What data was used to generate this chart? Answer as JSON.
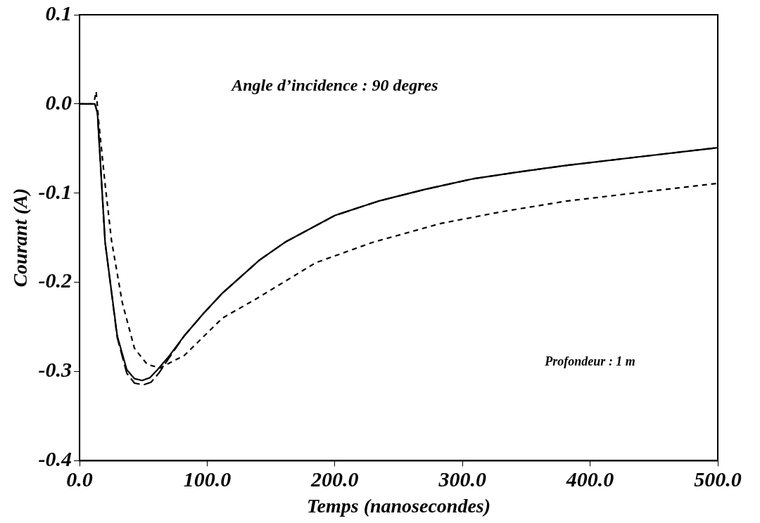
{
  "chart_data": {
    "type": "line",
    "xlabel": "Temps (nanosecondes)",
    "ylabel": "Courant (A)",
    "annotations": [
      "Angle d’incidence : 90 degres",
      "Profondeur : 1 m"
    ],
    "xlim": [
      0,
      500
    ],
    "xticks": [
      {
        "value": 0,
        "label": "0.0"
      },
      {
        "value": 100,
        "label": "100.0"
      },
      {
        "value": 200,
        "label": "200.0"
      },
      {
        "value": 300,
        "label": "300.0"
      },
      {
        "value": 400,
        "label": "400.0"
      },
      {
        "value": 500,
        "label": "500.0"
      }
    ],
    "ylim": [
      -0.4,
      0.1
    ],
    "yticks": [
      {
        "value": -0.4,
        "label": "-0.4"
      },
      {
        "value": -0.3,
        "label": "-0.3"
      },
      {
        "value": -0.2,
        "label": "-0.2"
      },
      {
        "value": -0.1,
        "label": "-0.1"
      },
      {
        "value": 0,
        "label": "0.0"
      },
      {
        "value": 0.1,
        "label": "0.1"
      }
    ],
    "grid": false,
    "legend": false,
    "marker": "none",
    "series": [
      {
        "color": "#000000",
        "line_style": "solid",
        "x": [
          0,
          12,
          14,
          20,
          29.5,
          37,
          43,
          49,
          55,
          61,
          70,
          82,
          97,
          112,
          141,
          161,
          200,
          234,
          270,
          308,
          345,
          381,
          440,
          494,
          500
        ],
        "values": [
          0,
          0,
          -0.01,
          -0.155,
          -0.26,
          -0.298,
          -0.308,
          -0.31,
          -0.307,
          -0.298,
          -0.283,
          -0.26,
          -0.235,
          -0.212,
          -0.175,
          -0.155,
          -0.125,
          -0.109,
          -0.096,
          -0.084,
          -0.076,
          -0.069,
          -0.059,
          -0.05,
          -0.049
        ]
      },
      {
        "color": "#000000",
        "line_style": "dashed",
        "x": [
          0,
          12,
          14,
          20,
          29.5,
          37,
          43,
          50,
          56,
          62,
          70,
          82,
          97,
          112,
          141,
          161,
          200,
          234,
          270,
          308,
          345,
          381,
          440,
          494,
          500
        ],
        "values": [
          0,
          0,
          -0.01,
          -0.155,
          -0.262,
          -0.302,
          -0.313,
          -0.315,
          -0.312,
          -0.302,
          -0.285,
          -0.26,
          -0.235,
          -0.212,
          -0.175,
          -0.155,
          -0.125,
          -0.109,
          -0.096,
          -0.084,
          -0.076,
          -0.069,
          -0.059,
          -0.05,
          -0.049
        ]
      },
      {
        "color": "#000000",
        "line_style": "dotted",
        "x": [
          0,
          11,
          13,
          15,
          20,
          25,
          33.5,
          43,
          53,
          63,
          82,
          112,
          139,
          185,
          230,
          283,
          330,
          381,
          440,
          494,
          500
        ],
        "values": [
          0,
          0,
          0.014,
          -0.02,
          -0.09,
          -0.153,
          -0.223,
          -0.274,
          -0.292,
          -0.296,
          -0.282,
          -0.24,
          -0.218,
          -0.178,
          -0.155,
          -0.134,
          -0.121,
          -0.109,
          -0.099,
          -0.09,
          -0.089
        ]
      }
    ]
  }
}
